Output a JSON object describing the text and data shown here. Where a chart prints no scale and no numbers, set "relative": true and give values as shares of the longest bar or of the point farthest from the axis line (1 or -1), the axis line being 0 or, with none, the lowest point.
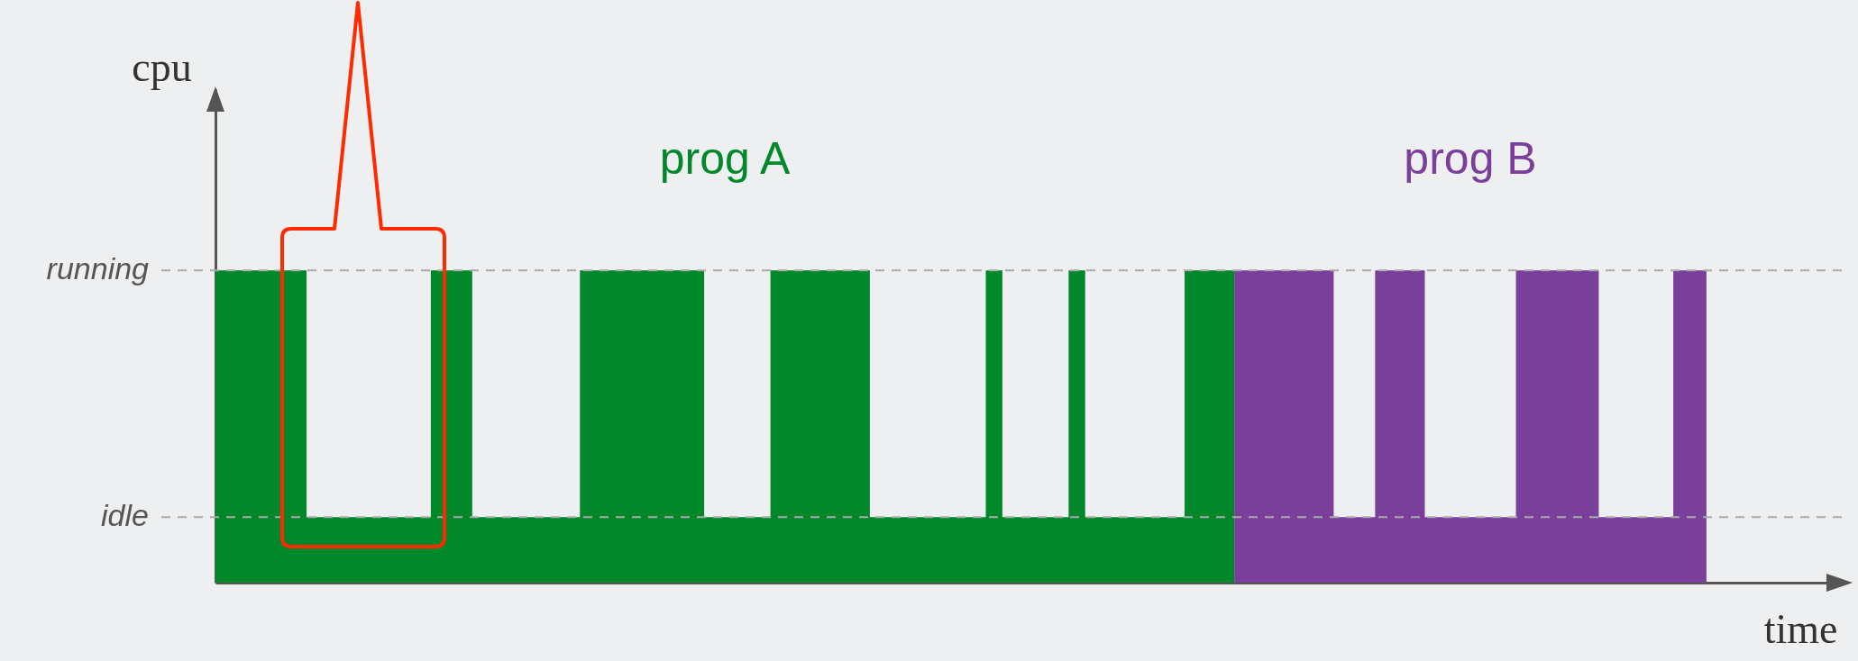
{
  "chart_data": {
    "type": "area",
    "relative": true,
    "xlabel": "time",
    "ylabel": "cpu",
    "categories": [
      null,
      null,
      null,
      null,
      null,
      null,
      null,
      null,
      null,
      null,
      null,
      null,
      null,
      null,
      null,
      null,
      null,
      null,
      null,
      null,
      null,
      null,
      null,
      null,
      null,
      null,
      null,
      null,
      null,
      null,
      null,
      null,
      null,
      null,
      null,
      null,
      null,
      null,
      null,
      null,
      null,
      null,
      null,
      null,
      null,
      null,
      null,
      null,
      null,
      null,
      null,
      null,
      null,
      null,
      null,
      null,
      null,
      null,
      null,
      null,
      null,
      null,
      null,
      null,
      null,
      null,
      null,
      null,
      null,
      null,
      null,
      null,
      null,
      null,
      null,
      null,
      null,
      null,
      null,
      null,
      null,
      null,
      null,
      null,
      null,
      null,
      null,
      null,
      null,
      null,
      null,
      null,
      null,
      null,
      null,
      null,
      null,
      null,
      null,
      null,
      null,
      null,
      null,
      null,
      null,
      null,
      null,
      null,
      null,
      null,
      null,
      null,
      null,
      null,
      null,
      null,
      null,
      null,
      null,
      null,
      null,
      null,
      null,
      null,
      null,
      null,
      null,
      null,
      null,
      null,
      null,
      null,
      null,
      null,
      null,
      null,
      null,
      null,
      null,
      null,
      null,
      null,
      null,
      null,
      null,
      null,
      null,
      null,
      null,
      null,
      null,
      null,
      null,
      null,
      null,
      null,
      null,
      null,
      null,
      null,
      null,
      null,
      null,
      null,
      null,
      null,
      null,
      null,
      null,
      null,
      null,
      null,
      null,
      null,
      null,
      null,
      null,
      null,
      null,
      null,
      null
    ],
    "series": [
      {
        "name": "prog A",
        "color": "#00882b",
        "values": [
          1,
          1,
          1,
          1,
          1,
          1,
          1,
          1,
          1,
          1,
          1,
          0.21,
          0.21,
          0.21,
          0.21,
          0.21,
          0.21,
          0.21,
          0.21,
          0.21,
          0.21,
          0.21,
          0.21,
          0.21,
          0.21,
          0.21,
          1,
          1,
          1,
          1,
          1,
          0.21,
          0.21,
          0.21,
          0.21,
          0.21,
          0.21,
          0.21,
          0.21,
          0.21,
          0.21,
          0.21,
          0.21,
          0.21,
          1,
          1,
          1,
          1,
          1,
          1,
          1,
          1,
          1,
          1,
          1,
          1,
          1,
          1,
          1,
          0.21,
          0.21,
          0.21,
          0.21,
          0.21,
          0.21,
          0.21,
          0.21,
          1,
          1,
          1,
          1,
          1,
          1,
          1,
          1,
          1,
          1,
          1,
          1,
          0.21,
          0.21,
          0.21,
          0.21,
          0.21,
          0.21,
          0.21,
          0.21,
          0.21,
          0.21,
          0.21,
          0.21,
          0.21,
          0.21,
          1,
          1,
          0.21,
          0.21,
          0.21,
          0.21,
          0.21,
          0.21,
          0.21,
          0.21,
          1,
          1,
          0.21,
          0.21,
          0.21,
          0.21,
          0.21,
          0.21,
          0.21,
          0.21,
          0.21,
          0.21,
          0.21,
          0.21,
          1,
          1,
          1,
          1,
          1,
          1,
          1,
          null,
          null,
          null,
          null,
          null,
          null,
          null,
          null,
          null,
          null,
          null,
          null,
          null,
          null,
          null,
          null,
          null,
          null,
          null,
          null,
          null,
          null,
          null,
          null,
          null,
          null,
          null,
          null,
          null,
          null,
          null,
          null,
          null,
          null,
          null,
          null,
          null,
          null,
          null,
          null,
          null,
          null,
          null,
          null,
          null,
          null,
          null,
          null,
          null,
          null,
          null,
          null,
          null,
          null,
          null,
          null,
          null
        ]
      },
      {
        "name": "prog B",
        "color": "#7a3f9a",
        "values": [
          null,
          null,
          null,
          null,
          null,
          null,
          null,
          null,
          null,
          null,
          null,
          null,
          null,
          null,
          null,
          null,
          null,
          null,
          null,
          null,
          null,
          null,
          null,
          null,
          null,
          null,
          null,
          null,
          null,
          null,
          null,
          null,
          null,
          null,
          null,
          null,
          null,
          null,
          null,
          null,
          null,
          null,
          null,
          null,
          null,
          null,
          null,
          null,
          null,
          null,
          null,
          null,
          null,
          null,
          null,
          null,
          null,
          null,
          null,
          null,
          null,
          null,
          null,
          null,
          null,
          null,
          null,
          null,
          null,
          null,
          null,
          null,
          null,
          null,
          null,
          null,
          null,
          null,
          null,
          null,
          null,
          null,
          null,
          null,
          null,
          null,
          null,
          null,
          null,
          null,
          null,
          null,
          null,
          null,
          null,
          null,
          null,
          null,
          null,
          null,
          null,
          null,
          null,
          null,
          null,
          null,
          null,
          null,
          null,
          null,
          null,
          null,
          null,
          null,
          null,
          null,
          null,
          null,
          null,
          null,
          null,
          null,
          null,
          1,
          1,
          1,
          1,
          1,
          1,
          1,
          1,
          1,
          1,
          1,
          1,
          0.21,
          0.21,
          0.21,
          0.21,
          0.21,
          1,
          1,
          1,
          1,
          1,
          1,
          0.21,
          0.21,
          0.21,
          0.21,
          0.21,
          0.21,
          0.21,
          0.21,
          0.21,
          0.21,
          0.21,
          1,
          1,
          1,
          1,
          1,
          1,
          1,
          1,
          1,
          1,
          0.21,
          0.21,
          0.21,
          0.21,
          0.21,
          0.21,
          0.21,
          0.21,
          0.21,
          1,
          1,
          1,
          1,
          1
        ]
      }
    ],
    "ref_lines": [
      {
        "axis": "y",
        "value": 1,
        "label": "running",
        "line_style": "dashed",
        "color": "#aaaaaa"
      },
      {
        "axis": "y",
        "value": 0.21,
        "label": "idle",
        "line_style": "dashed",
        "color": "#aaaaaa"
      }
    ]
  }
}
